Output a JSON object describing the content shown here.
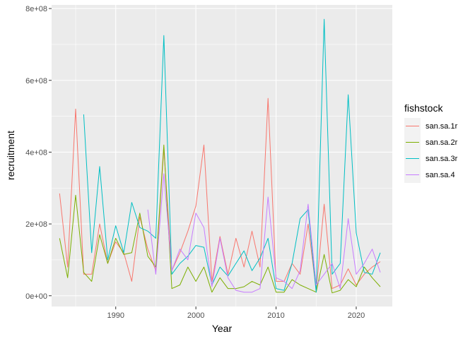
{
  "chart_data": {
    "type": "line",
    "xlabel": "Year",
    "ylabel": "recruitment",
    "xlim": [
      1982,
      2024.5
    ],
    "ylim": [
      -30000000,
      810000000
    ],
    "x_ticks": [
      1990,
      2000,
      2010,
      2020
    ],
    "x_tick_labels": [
      "1990",
      "2000",
      "2010",
      "2020"
    ],
    "y_ticks": [
      0,
      200000000,
      400000000,
      600000000,
      800000000
    ],
    "y_tick_labels": [
      "0e+00",
      "2e+08",
      "4e+08",
      "6e+08",
      "8e+08"
    ],
    "grid": true,
    "legend": {
      "title": "fishstock",
      "position": "right"
    },
    "series": [
      {
        "name": "san.sa.1r",
        "color": "#F8766D",
        "x": [
          1983,
          1984,
          1985,
          1986,
          1987,
          1988,
          1989,
          1990,
          1991,
          1992,
          1993,
          1994,
          1995,
          1996,
          1997,
          1998,
          1999,
          2000,
          2001,
          2002,
          2003,
          2004,
          2005,
          2006,
          2007,
          2008,
          2009,
          2010,
          2011,
          2012,
          2013,
          2014,
          2015,
          2016,
          2017,
          2018,
          2019,
          2020,
          2021,
          2022,
          2023
        ],
        "y": [
          285000000,
          80000000,
          520000000,
          60000000,
          60000000,
          200000000,
          90000000,
          150000000,
          120000000,
          40000000,
          220000000,
          130000000,
          70000000,
          410000000,
          70000000,
          120000000,
          180000000,
          250000000,
          420000000,
          40000000,
          165000000,
          60000000,
          160000000,
          80000000,
          180000000,
          80000000,
          550000000,
          40000000,
          40000000,
          90000000,
          60000000,
          200000000,
          15000000,
          255000000,
          20000000,
          30000000,
          75000000,
          30000000,
          60000000,
          80000000,
          95000000
        ]
      },
      {
        "name": "san.sa.2r",
        "color": "#7CAE00",
        "x": [
          1983,
          1984,
          1985,
          1986,
          1987,
          1988,
          1989,
          1990,
          1991,
          1992,
          1993,
          1994,
          1995,
          1996,
          1997,
          1998,
          1999,
          2000,
          2001,
          2002,
          2003,
          2004,
          2005,
          2006,
          2007,
          2008,
          2009,
          2010,
          2011,
          2012,
          2013,
          2014,
          2015,
          2016,
          2017,
          2018,
          2019,
          2020,
          2021,
          2022,
          2023
        ],
        "y": [
          160000000,
          50000000,
          280000000,
          65000000,
          40000000,
          170000000,
          90000000,
          160000000,
          115000000,
          120000000,
          230000000,
          110000000,
          80000000,
          420000000,
          20000000,
          30000000,
          80000000,
          40000000,
          80000000,
          10000000,
          50000000,
          20000000,
          20000000,
          25000000,
          40000000,
          30000000,
          80000000,
          10000000,
          10000000,
          45000000,
          30000000,
          20000000,
          10000000,
          115000000,
          8000000,
          15000000,
          45000000,
          25000000,
          80000000,
          50000000,
          25000000
        ]
      },
      {
        "name": "san.sa.3r",
        "color": "#00BFC4",
        "x": [
          1986,
          1987,
          1988,
          1989,
          1990,
          1991,
          1992,
          1993,
          1994,
          1995,
          1996,
          1997,
          1998,
          1999,
          2000,
          2001,
          2002,
          2003,
          2004,
          2005,
          2006,
          2007,
          2008,
          2009,
          2010,
          2011,
          2012,
          2013,
          2014,
          2015,
          2016,
          2017,
          2018,
          2019,
          2020,
          2021,
          2022,
          2023
        ],
        "y": [
          505000000,
          120000000,
          360000000,
          100000000,
          195000000,
          120000000,
          260000000,
          190000000,
          180000000,
          160000000,
          725000000,
          60000000,
          90000000,
          110000000,
          140000000,
          135000000,
          30000000,
          80000000,
          55000000,
          90000000,
          125000000,
          70000000,
          105000000,
          160000000,
          20000000,
          15000000,
          90000000,
          215000000,
          240000000,
          10000000,
          770000000,
          60000000,
          90000000,
          560000000,
          175000000,
          65000000,
          60000000,
          120000000
        ]
      },
      {
        "name": "san.sa.4",
        "color": "#C77CFF",
        "x": [
          1994,
          1995,
          1996,
          1997,
          1998,
          1999,
          2000,
          2001,
          2002,
          2003,
          2004,
          2005,
          2006,
          2007,
          2008,
          2009,
          2010,
          2011,
          2012,
          2013,
          2014,
          2015,
          2016,
          2017,
          2018,
          2019,
          2020,
          2021,
          2022,
          2023
        ],
        "y": [
          240000000,
          60000000,
          340000000,
          70000000,
          130000000,
          100000000,
          230000000,
          190000000,
          25000000,
          160000000,
          50000000,
          15000000,
          10000000,
          10000000,
          20000000,
          275000000,
          50000000,
          40000000,
          20000000,
          70000000,
          255000000,
          30000000,
          60000000,
          90000000,
          20000000,
          215000000,
          60000000,
          90000000,
          130000000,
          65000000
        ]
      }
    ]
  }
}
